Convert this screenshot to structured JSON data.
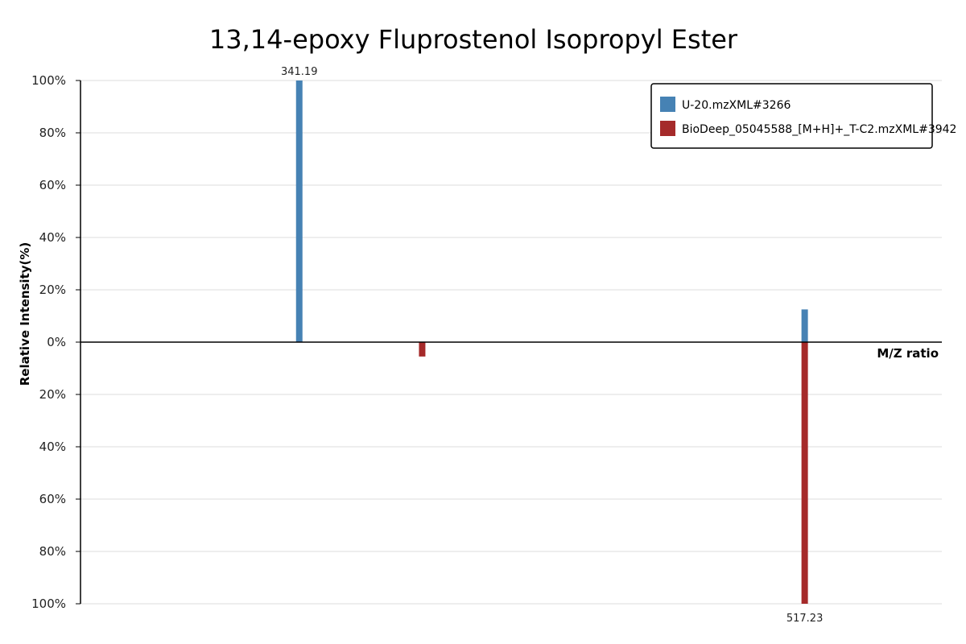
{
  "chart_data": {
    "type": "bar",
    "title": "13,14-epoxy Fluprostenol Isopropyl Ester",
    "xlabel": "M/Z ratio",
    "ylabel": "Relative Intensity(%)",
    "y_ticks_top": [
      "100%",
      "80%",
      "60%",
      "40%",
      "20%",
      "0%"
    ],
    "y_ticks_bottom": [
      "20%",
      "40%",
      "60%",
      "80%",
      "100%"
    ],
    "ylim": [
      -100,
      100
    ],
    "xlim": [
      265,
      565
    ],
    "grid": true,
    "legend_position": "top-right",
    "series": [
      {
        "name": "U-20.mzXML#3266",
        "color": "#4682b4",
        "direction": "up",
        "peaks": [
          {
            "mz": 341.19,
            "intensity": 100,
            "label": "341.19"
          },
          {
            "mz": 517.23,
            "intensity": 12.5
          }
        ]
      },
      {
        "name": "BioDeep_05045588_[M+H]+_T-C2.mzXML#3942",
        "color": "#a52a2a",
        "direction": "down",
        "peaks": [
          {
            "mz": 384,
            "intensity": 5.5
          },
          {
            "mz": 517.23,
            "intensity": 100,
            "label": "517.23"
          }
        ]
      }
    ]
  }
}
